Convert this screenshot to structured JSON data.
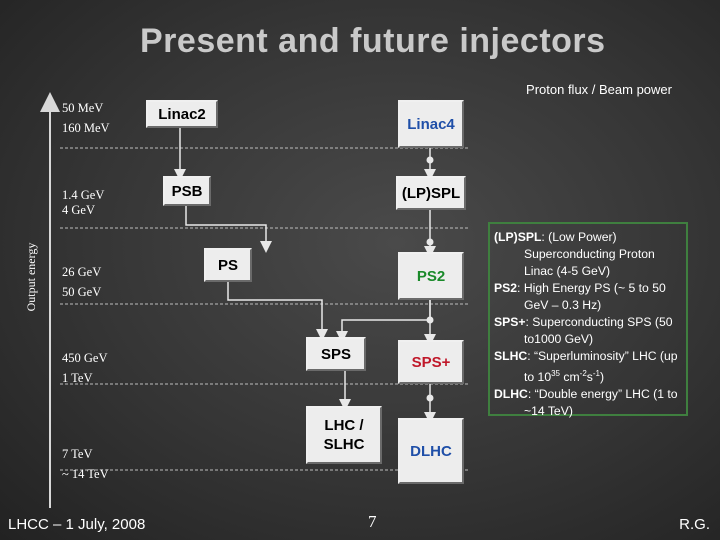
{
  "title": "Present and future injectors",
  "subtitle": "Proton flux / Beam power",
  "axis_label": "Output energy",
  "levels": [
    {
      "line1": "50 MeV",
      "line2": "160 MeV"
    },
    {
      "line1": "1.4 GeV",
      "line2": "4 GeV"
    },
    {
      "line1": "26 GeV",
      "line2": "50 GeV"
    },
    {
      "line1": "450 GeV",
      "line2": "1 TeV"
    },
    {
      "line1": "7 TeV",
      "line2": "~ 14 TeV"
    }
  ],
  "present": {
    "linac2": "Linac2",
    "psb": "PSB",
    "ps": "PS",
    "sps": "SPS",
    "lhc_line1": "LHC /",
    "lhc_line2": "SLHC"
  },
  "future": {
    "linac4": "Linac4",
    "lpspl": "(LP)SPL",
    "ps2": "PS2",
    "sps_plus": "SPS+",
    "dlhc": "DLHC"
  },
  "legend": [
    {
      "term": "(LP)SPL",
      "text": ": (Low Power) Superconducting Proton Linac (4-5 GeV)"
    },
    {
      "term": "PS2",
      "text": ": High Energy PS (~ 5 to 50 GeV – 0.3 Hz)"
    },
    {
      "term": "SPS+",
      "text": ": Superconducting SPS (50 to1000 GeV)"
    },
    {
      "term": "SLHC",
      "text": ": “Superluminosity” LHC (up to 10",
      "sup": "35",
      "tail": " cm",
      "sup2": "-2",
      "tail2": "s",
      "sup3": "-1",
      "tail3": ")"
    },
    {
      "term": "DLHC",
      "text": ": “Double energy” LHC (1 to ~14 TeV)"
    }
  ],
  "footer": {
    "left": "LHCC – 1 July, 2008",
    "page": "7",
    "right": "R.G."
  },
  "colors": {
    "future_blue": "#1f4fa8",
    "future_green": "#1a8a2a",
    "future_red": "#c0182a",
    "legend_border": "#3f7f3f"
  }
}
